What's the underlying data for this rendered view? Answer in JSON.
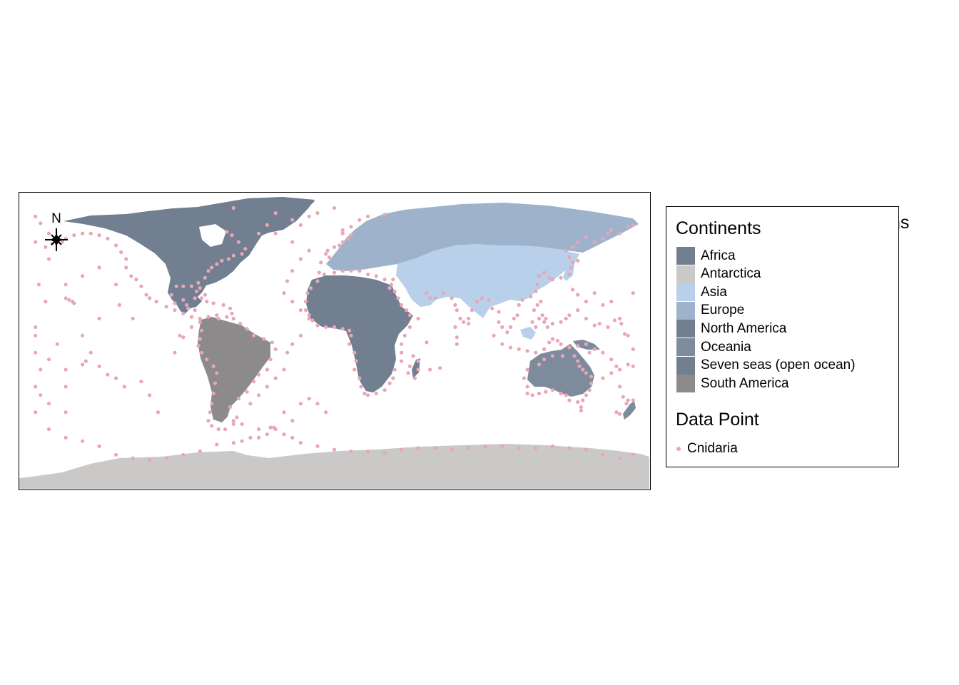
{
  "overflow_title": "ns",
  "compass": {
    "label": "N"
  },
  "colors": {
    "Africa": "#717f90",
    "Antarctica": "#cbc8c8",
    "Asia": "#b8d0ea",
    "Europe": "#9eb3cb",
    "North America": "#717f90",
    "Oceania": "#7d8b9c",
    "Seven seas (open ocean)": "#717f90",
    "South America": "#8d8a8b",
    "points": "#e8a6b8"
  },
  "legend": {
    "continents_title": "Continents",
    "continents": [
      "Africa",
      "Antarctica",
      "Asia",
      "Europe",
      "North America",
      "Oceania",
      "Seven seas (open ocean)",
      "South America"
    ],
    "points_title": "Data Point",
    "points": [
      "Cnidaria"
    ]
  },
  "map_data": {
    "projection": "equirectangular",
    "extent": {
      "lon": [
        -180,
        180
      ],
      "lat": [
        -90,
        84
      ]
    },
    "north_arrow": "top-left",
    "occurrence_points": [
      [
        -178,
        70
      ],
      [
        -175,
        66
      ],
      [
        -170,
        60
      ],
      [
        -165,
        55
      ],
      [
        -160,
        57
      ],
      [
        -155,
        59
      ],
      [
        -150,
        60
      ],
      [
        -145,
        60
      ],
      [
        -140,
        59
      ],
      [
        -135,
        57
      ],
      [
        -130,
        53
      ],
      [
        -127,
        49
      ],
      [
        -124,
        45
      ],
      [
        -124,
        40
      ],
      [
        -121,
        35
      ],
      [
        -118,
        33
      ],
      [
        -115,
        29
      ],
      [
        -112,
        24
      ],
      [
        -110,
        22
      ],
      [
        -106,
        20
      ],
      [
        -100,
        17
      ],
      [
        -95,
        15
      ],
      [
        -90,
        13
      ],
      [
        -85,
        11
      ],
      [
        -80,
        8
      ],
      [
        -79,
        3
      ],
      [
        -80,
        -2
      ],
      [
        -81,
        -6
      ],
      [
        -79,
        -10
      ],
      [
        -76,
        -14
      ],
      [
        -72,
        -18
      ],
      [
        -70,
        -22
      ],
      [
        -71,
        -28
      ],
      [
        -72,
        -34
      ],
      [
        -73,
        -40
      ],
      [
        -74,
        -45
      ],
      [
        -75,
        -50
      ],
      [
        -73,
        -53
      ],
      [
        -69,
        -55
      ],
      [
        -65,
        -55
      ],
      [
        -60,
        -52
      ],
      [
        -58,
        -48
      ],
      [
        -62,
        -42
      ],
      [
        -57,
        -37
      ],
      [
        -52,
        -33
      ],
      [
        -48,
        -27
      ],
      [
        -45,
        -23
      ],
      [
        -40,
        -20
      ],
      [
        -38,
        -14
      ],
      [
        -35,
        -8
      ],
      [
        -37,
        -4
      ],
      [
        -42,
        -2
      ],
      [
        -48,
        0
      ],
      [
        -52,
        4
      ],
      [
        -56,
        7
      ],
      [
        -60,
        10
      ],
      [
        -64,
        11
      ],
      [
        -70,
        12
      ],
      [
        -75,
        11
      ],
      [
        -80,
        10
      ],
      [
        -83,
        15
      ],
      [
        -87,
        16
      ],
      [
        -90,
        21
      ],
      [
        -95,
        19
      ],
      [
        -97,
        24
      ],
      [
        -94,
        29
      ],
      [
        -90,
        29
      ],
      [
        -85,
        29
      ],
      [
        -82,
        26
      ],
      [
        -80,
        28
      ],
      [
        -81,
        31
      ],
      [
        -77,
        34
      ],
      [
        -75,
        38
      ],
      [
        -73,
        40
      ],
      [
        -70,
        42
      ],
      [
        -67,
        44
      ],
      [
        -63,
        45
      ],
      [
        -60,
        47
      ],
      [
        -55,
        48
      ],
      [
        -53,
        51
      ],
      [
        -57,
        55
      ],
      [
        -61,
        59
      ],
      [
        -64,
        61
      ],
      [
        -77,
        24
      ],
      [
        -76,
        20
      ],
      [
        -72,
        19
      ],
      [
        -66,
        18
      ],
      [
        -62,
        16
      ],
      [
        -61,
        13
      ],
      [
        -79,
        22
      ],
      [
        -83,
        22
      ],
      [
        -88,
        18
      ],
      [
        -69,
        10
      ],
      [
        -158,
        21
      ],
      [
        -156,
        20
      ],
      [
        -160,
        22
      ],
      [
        -155,
        19
      ],
      [
        -170,
        -14
      ],
      [
        -160,
        -20
      ],
      [
        -150,
        -17
      ],
      [
        -148,
        -15
      ],
      [
        -140,
        -18
      ],
      [
        -135,
        -23
      ],
      [
        -130,
        -25
      ],
      [
        -170,
        -40
      ],
      [
        -175,
        -35
      ],
      [
        -160,
        -30
      ],
      [
        -145,
        -10
      ],
      [
        -125,
        -30
      ],
      [
        -115,
        -27
      ],
      [
        -110,
        -35
      ],
      [
        -105,
        -45
      ],
      [
        -95,
        -10
      ],
      [
        -92,
        0
      ],
      [
        -90,
        -1
      ],
      [
        -85,
        5
      ],
      [
        -120,
        10
      ],
      [
        -140,
        10
      ],
      [
        -150,
        0
      ],
      [
        -165,
        -5
      ],
      [
        -175,
        -20
      ],
      [
        -178,
        -10
      ],
      [
        -178,
        0
      ],
      [
        -178,
        5
      ],
      [
        -172,
        20
      ],
      [
        -160,
        30
      ],
      [
        -150,
        35
      ],
      [
        -170,
        45
      ],
      [
        -140,
        40
      ],
      [
        -130,
        30
      ],
      [
        -128,
        18
      ],
      [
        -170,
        -55
      ],
      [
        -160,
        -60
      ],
      [
        -150,
        -62
      ],
      [
        -140,
        -65
      ],
      [
        -130,
        -70
      ],
      [
        -120,
        -72
      ],
      [
        -110,
        -73
      ],
      [
        -100,
        -72
      ],
      [
        -90,
        -70
      ],
      [
        -80,
        -68
      ],
      [
        -70,
        -64
      ],
      [
        -60,
        -63
      ],
      [
        -55,
        -62
      ],
      [
        -50,
        -60
      ],
      [
        -45,
        -60
      ],
      [
        -40,
        -58
      ],
      [
        -35,
        -55
      ],
      [
        -30,
        -58
      ],
      [
        -25,
        -60
      ],
      [
        -20,
        -63
      ],
      [
        -10,
        -65
      ],
      [
        0,
        -67
      ],
      [
        10,
        -68
      ],
      [
        20,
        -68
      ],
      [
        30,
        -69
      ],
      [
        40,
        -67
      ],
      [
        50,
        -66
      ],
      [
        60,
        -66
      ],
      [
        70,
        -67
      ],
      [
        80,
        -66
      ],
      [
        90,
        -65
      ],
      [
        100,
        -65
      ],
      [
        110,
        -66
      ],
      [
        120,
        -66
      ],
      [
        130,
        -65
      ],
      [
        140,
        -66
      ],
      [
        150,
        -67
      ],
      [
        160,
        -70
      ],
      [
        170,
        -72
      ],
      [
        178,
        -70
      ],
      [
        -60,
        -50
      ],
      [
        -55,
        -52
      ],
      [
        -45,
        -55
      ],
      [
        -38,
        -54
      ],
      [
        -36,
        -54
      ],
      [
        -30,
        -45
      ],
      [
        -25,
        -50
      ],
      [
        -20,
        -40
      ],
      [
        -15,
        -37
      ],
      [
        -10,
        -40
      ],
      [
        -5,
        -45
      ],
      [
        -50,
        -40
      ],
      [
        -45,
        -35
      ],
      [
        -40,
        -30
      ],
      [
        -35,
        -25
      ],
      [
        -30,
        -20
      ],
      [
        -28,
        -10
      ],
      [
        -25,
        -5
      ],
      [
        -20,
        0
      ],
      [
        -15,
        10
      ],
      [
        -20,
        15
      ],
      [
        -25,
        20
      ],
      [
        -30,
        25
      ],
      [
        -28,
        32
      ],
      [
        -25,
        38
      ],
      [
        -20,
        45
      ],
      [
        -15,
        50
      ],
      [
        -25,
        55
      ],
      [
        -35,
        60
      ],
      [
        -40,
        65
      ],
      [
        -20,
        65
      ],
      [
        -15,
        70
      ],
      [
        -10,
        72
      ],
      [
        0,
        75
      ],
      [
        -17,
        15
      ],
      [
        -17,
        20
      ],
      [
        -16,
        25
      ],
      [
        -14,
        28
      ],
      [
        -10,
        32
      ],
      [
        -9,
        37
      ],
      [
        -6,
        36
      ],
      [
        0,
        37
      ],
      [
        5,
        38
      ],
      [
        10,
        38
      ],
      [
        15,
        38
      ],
      [
        20,
        36
      ],
      [
        25,
        35
      ],
      [
        30,
        33
      ],
      [
        35,
        33
      ],
      [
        -8,
        43
      ],
      [
        -3,
        46
      ],
      [
        -5,
        48
      ],
      [
        -4,
        50
      ],
      [
        0,
        52
      ],
      [
        3,
        53
      ],
      [
        5,
        55
      ],
      [
        8,
        57
      ],
      [
        10,
        59
      ],
      [
        5,
        60
      ],
      [
        5,
        62
      ],
      [
        10,
        64
      ],
      [
        15,
        68
      ],
      [
        20,
        70
      ],
      [
        30,
        71
      ],
      [
        -15,
        12
      ],
      [
        -13,
        9
      ],
      [
        -10,
        6
      ],
      [
        -5,
        5
      ],
      [
        0,
        5
      ],
      [
        5,
        4
      ],
      [
        9,
        3
      ],
      [
        10,
        0
      ],
      [
        9,
        -5
      ],
      [
        12,
        -10
      ],
      [
        13,
        -15
      ],
      [
        12,
        -20
      ],
      [
        15,
        -25
      ],
      [
        16,
        -30
      ],
      [
        18,
        -34
      ],
      [
        20,
        -35
      ],
      [
        25,
        -34
      ],
      [
        30,
        -32
      ],
      [
        33,
        -28
      ],
      [
        35,
        -25
      ],
      [
        36,
        -20
      ],
      [
        40,
        -15
      ],
      [
        40,
        -10
      ],
      [
        40,
        -5
      ],
      [
        42,
        0
      ],
      [
        45,
        5
      ],
      [
        50,
        10
      ],
      [
        45,
        12
      ],
      [
        43,
        15
      ],
      [
        40,
        18
      ],
      [
        38,
        22
      ],
      [
        36,
        26
      ],
      [
        33,
        28
      ],
      [
        34,
        30
      ],
      [
        47,
        -12
      ],
      [
        45,
        -18
      ],
      [
        44,
        -22
      ],
      [
        48,
        -25
      ],
      [
        50,
        -20
      ],
      [
        50,
        -15
      ],
      [
        55,
        -4
      ],
      [
        57,
        -20
      ],
      [
        63,
        -19
      ],
      [
        73,
        -5
      ],
      [
        72,
        5
      ],
      [
        73,
        -1
      ],
      [
        55,
        25
      ],
      [
        57,
        22
      ],
      [
        60,
        22
      ],
      [
        65,
        25
      ],
      [
        70,
        22
      ],
      [
        72,
        18
      ],
      [
        73,
        15
      ],
      [
        75,
        10
      ],
      [
        77,
        8
      ],
      [
        80,
        7
      ],
      [
        80,
        10
      ],
      [
        82,
        15
      ],
      [
        85,
        20
      ],
      [
        88,
        22
      ],
      [
        92,
        21
      ],
      [
        94,
        16
      ],
      [
        98,
        14
      ],
      [
        98,
        8
      ],
      [
        100,
        5
      ],
      [
        103,
        2
      ],
      [
        105,
        5
      ],
      [
        107,
        10
      ],
      [
        109,
        12
      ],
      [
        110,
        18
      ],
      [
        112,
        21
      ],
      [
        117,
        23
      ],
      [
        120,
        26
      ],
      [
        121,
        30
      ],
      [
        122,
        35
      ],
      [
        125,
        37
      ],
      [
        128,
        34
      ],
      [
        130,
        33
      ],
      [
        135,
        34
      ],
      [
        140,
        36
      ],
      [
        141,
        40
      ],
      [
        142,
        43
      ],
      [
        145,
        44
      ],
      [
        140,
        46
      ],
      [
        138,
        50
      ],
      [
        142,
        52
      ],
      [
        145,
        55
      ],
      [
        150,
        58
      ],
      [
        155,
        55
      ],
      [
        160,
        57
      ],
      [
        163,
        60
      ],
      [
        165,
        62
      ],
      [
        170,
        60
      ],
      [
        175,
        64
      ],
      [
        178,
        65
      ],
      [
        95,
        0
      ],
      [
        100,
        -5
      ],
      [
        105,
        -7
      ],
      [
        110,
        -8
      ],
      [
        115,
        -9
      ],
      [
        120,
        -10
      ],
      [
        125,
        -8
      ],
      [
        128,
        -4
      ],
      [
        130,
        -2
      ],
      [
        133,
        -3
      ],
      [
        135,
        -5
      ],
      [
        140,
        -7
      ],
      [
        145,
        -6
      ],
      [
        150,
        -5
      ],
      [
        152,
        -10
      ],
      [
        155,
        -8
      ],
      [
        160,
        -10
      ],
      [
        165,
        -14
      ],
      [
        168,
        -18
      ],
      [
        165,
        -22
      ],
      [
        160,
        -25
      ],
      [
        170,
        -20
      ],
      [
        175,
        -17
      ],
      [
        178,
        -18
      ],
      [
        170,
        -30
      ],
      [
        172,
        -36
      ],
      [
        174,
        -40
      ],
      [
        175,
        -38
      ],
      [
        178,
        -38
      ],
      [
        168,
        -45
      ],
      [
        170,
        -46
      ],
      [
        115,
        -20
      ],
      [
        113,
        -25
      ],
      [
        115,
        -30
      ],
      [
        115,
        -34
      ],
      [
        118,
        -35
      ],
      [
        122,
        -34
      ],
      [
        126,
        -33
      ],
      [
        130,
        -32
      ],
      [
        135,
        -34
      ],
      [
        138,
        -35
      ],
      [
        140,
        -38
      ],
      [
        145,
        -39
      ],
      [
        148,
        -38
      ],
      [
        150,
        -35
      ],
      [
        152,
        -32
      ],
      [
        153,
        -28
      ],
      [
        153,
        -24
      ],
      [
        150,
        -22
      ],
      [
        148,
        -20
      ],
      [
        146,
        -18
      ],
      [
        145,
        -15
      ],
      [
        143,
        -12
      ],
      [
        136,
        -12
      ],
      [
        130,
        -12
      ],
      [
        125,
        -14
      ],
      [
        122,
        -17
      ],
      [
        147,
        -42
      ],
      [
        147,
        -44
      ],
      [
        120,
        5
      ],
      [
        122,
        10
      ],
      [
        124,
        12
      ],
      [
        125,
        8
      ],
      [
        118,
        8
      ],
      [
        119,
        15
      ],
      [
        121,
        18
      ],
      [
        123,
        20
      ],
      [
        126,
        10
      ],
      [
        127,
        5
      ],
      [
        130,
        7
      ],
      [
        135,
        8
      ],
      [
        138,
        10
      ],
      [
        140,
        12
      ],
      [
        145,
        15
      ],
      [
        150,
        10
      ],
      [
        155,
        6
      ],
      [
        158,
        7
      ],
      [
        163,
        5
      ],
      [
        167,
        9
      ],
      [
        171,
        7
      ],
      [
        173,
        1
      ],
      [
        150,
        20
      ],
      [
        160,
        18
      ],
      [
        170,
        10
      ],
      [
        175,
        0
      ],
      [
        178,
        -8
      ],
      [
        155,
        25
      ],
      [
        142,
        27
      ],
      [
        145,
        24
      ],
      [
        165,
        20
      ],
      [
        178,
        25
      ],
      [
        -178,
        55
      ],
      [
        -172,
        52
      ],
      [
        -168,
        54
      ],
      [
        -162,
        55
      ],
      [
        -176,
        30
      ],
      [
        -160,
        -45
      ],
      [
        -178,
        -45
      ],
      [
        -178,
        -30
      ],
      [
        -35,
        72
      ],
      [
        -45,
        60
      ],
      [
        -25,
        68
      ],
      [
        -60,
        75
      ]
    ]
  }
}
